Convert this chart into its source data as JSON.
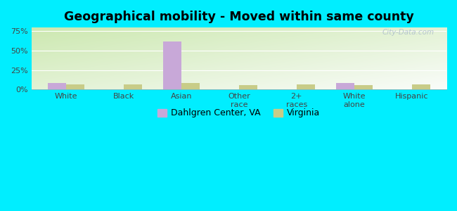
{
  "title": "Geographical mobility - Moved within same county",
  "categories": [
    "White",
    "Black",
    "Asian",
    "Other\nrace",
    "2+\nraces",
    "White\nalone",
    "Hispanic"
  ],
  "dahlgren_values": [
    8,
    0,
    62,
    0,
    0,
    8,
    0
  ],
  "virginia_values": [
    7,
    7,
    8,
    6,
    7,
    6,
    7
  ],
  "bar_color_dahlgren": "#c8a8d8",
  "bar_color_virginia": "#c8cc88",
  "background_color_outer": "#00eeff",
  "yticks": [
    0,
    25,
    50,
    75
  ],
  "ylim": [
    0,
    80
  ],
  "legend_label_1": "Dahlgren Center, VA",
  "legend_label_2": "Virginia",
  "bar_width": 0.32,
  "title_fontsize": 12.5,
  "tick_fontsize": 8,
  "legend_fontsize": 9,
  "watermark": "City-Data.com",
  "grad_top_left": "#d8edd0",
  "grad_bottom_right": "#f0fdf0"
}
